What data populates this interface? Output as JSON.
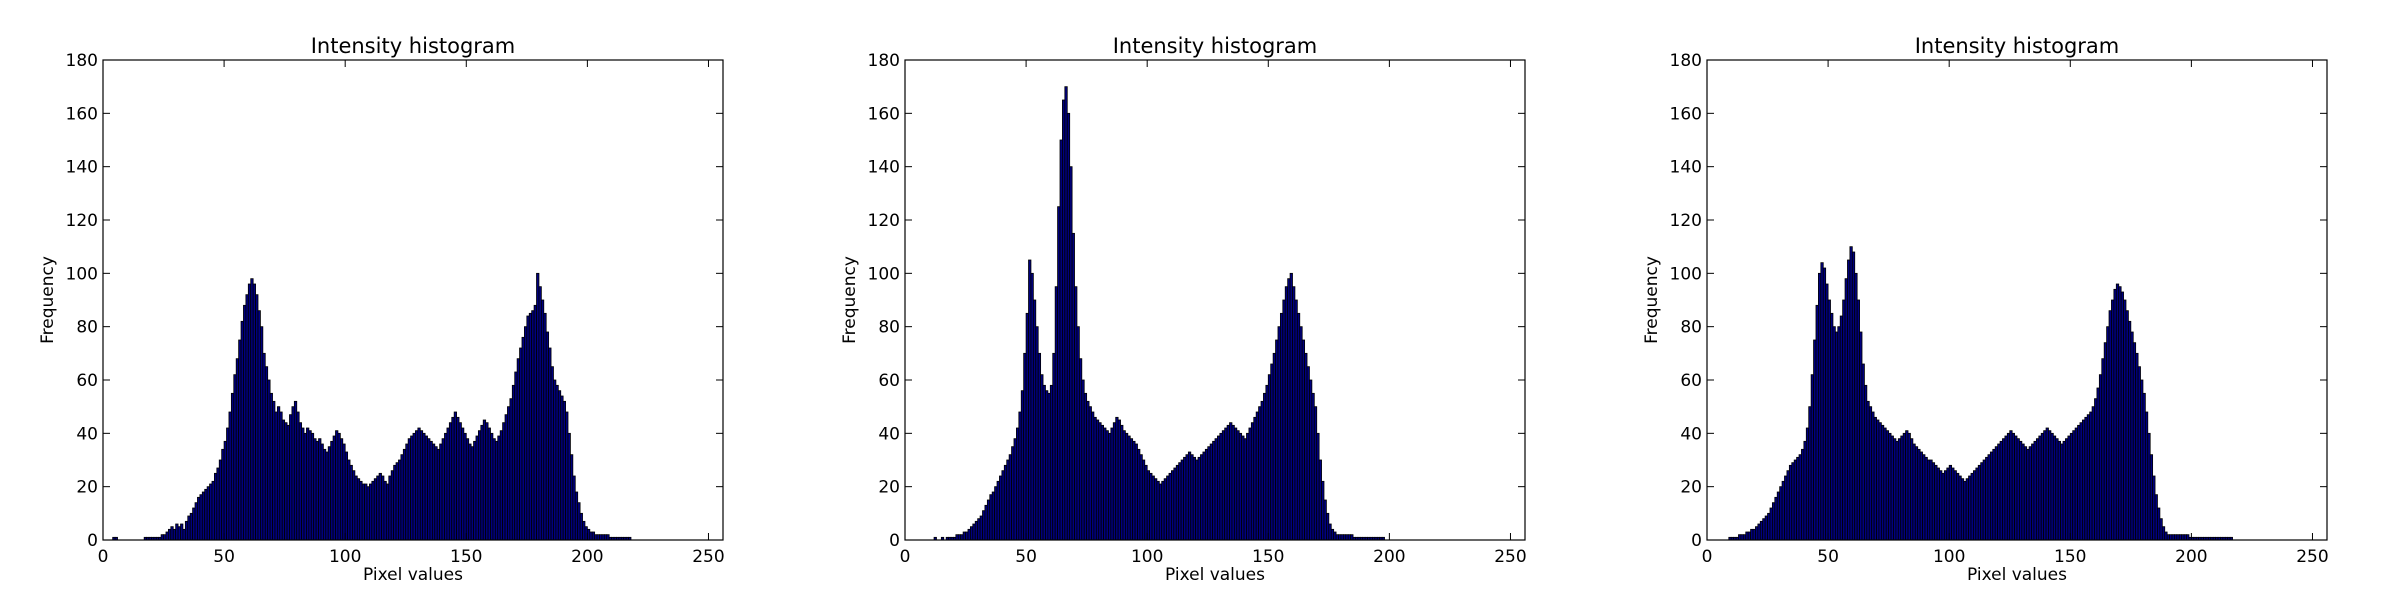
{
  "chart_data": [
    {
      "type": "bar",
      "title": "Intensity histogram",
      "xlabel": "Pixel values",
      "ylabel": "Frequency",
      "xlim": [
        0,
        256
      ],
      "ylim": [
        0,
        180
      ],
      "xticks": [
        "0",
        "50",
        "100",
        "150",
        "200",
        "250"
      ],
      "yticks": [
        "0",
        "20",
        "40",
        "60",
        "80",
        "100",
        "120",
        "140",
        "160",
        "180"
      ],
      "colors": {
        "bar_fill": "#00007f",
        "bar_edge": "#000000"
      },
      "bin_width": 1,
      "x_start": 0,
      "values": [
        0,
        0,
        0,
        0,
        1,
        1,
        0,
        0,
        0,
        0,
        0,
        0,
        0,
        0,
        0,
        0,
        0,
        1,
        1,
        1,
        1,
        1,
        1,
        1,
        2,
        2,
        3,
        4,
        5,
        4,
        6,
        5,
        6,
        4,
        7,
        9,
        10,
        12,
        14,
        16,
        17,
        18,
        19,
        20,
        21,
        22,
        25,
        27,
        30,
        34,
        37,
        42,
        48,
        55,
        62,
        68,
        75,
        82,
        88,
        92,
        96,
        98,
        96,
        92,
        86,
        80,
        70,
        65,
        60,
        55,
        52,
        48,
        50,
        48,
        45,
        44,
        43,
        47,
        50,
        52,
        48,
        44,
        42,
        40,
        42,
        41,
        40,
        38,
        37,
        38,
        36,
        34,
        33,
        35,
        37,
        39,
        41,
        40,
        38,
        36,
        33,
        30,
        28,
        26,
        24,
        23,
        22,
        21,
        21,
        20,
        21,
        22,
        23,
        24,
        25,
        24,
        22,
        21,
        24,
        26,
        28,
        29,
        30,
        32,
        34,
        36,
        38,
        39,
        40,
        41,
        42,
        41,
        40,
        39,
        38,
        37,
        36,
        35,
        34,
        36,
        38,
        40,
        42,
        44,
        46,
        48,
        46,
        44,
        42,
        40,
        38,
        36,
        35,
        37,
        39,
        41,
        43,
        45,
        44,
        42,
        40,
        38,
        37,
        39,
        41,
        44,
        47,
        50,
        53,
        58,
        63,
        68,
        72,
        76,
        80,
        84,
        85,
        86,
        88,
        100,
        95,
        90,
        85,
        78,
        72,
        65,
        60,
        58,
        56,
        54,
        52,
        48,
        40,
        32,
        24,
        18,
        14,
        10,
        7,
        5,
        4,
        3,
        3,
        2,
        2,
        2,
        2,
        2,
        2,
        1,
        1,
        1,
        1,
        1,
        1,
        1,
        1,
        1,
        0,
        0,
        0,
        0,
        0,
        0,
        0,
        0,
        0,
        0,
        0,
        0,
        0,
        0,
        0,
        0,
        0,
        0,
        0,
        0,
        0,
        0,
        0,
        0,
        0,
        0,
        0,
        0,
        0,
        0,
        0,
        0,
        0,
        0,
        0,
        0,
        0,
        0,
        0,
        0,
        0
      ]
    },
    {
      "type": "bar",
      "title": "Intensity histogram",
      "xlabel": "Pixel values",
      "ylabel": "Frequency",
      "xlim": [
        0,
        256
      ],
      "ylim": [
        0,
        180
      ],
      "xticks": [
        "0",
        "50",
        "100",
        "150",
        "200",
        "250"
      ],
      "yticks": [
        "0",
        "20",
        "40",
        "60",
        "80",
        "100",
        "120",
        "140",
        "160",
        "180"
      ],
      "colors": {
        "bar_fill": "#00007f",
        "bar_edge": "#000000"
      },
      "bin_width": 1,
      "x_start": 0,
      "values": [
        0,
        0,
        0,
        0,
        0,
        0,
        0,
        0,
        0,
        0,
        0,
        0,
        1,
        0,
        0,
        1,
        0,
        1,
        1,
        1,
        1,
        2,
        2,
        2,
        3,
        3,
        4,
        5,
        6,
        7,
        8,
        9,
        11,
        13,
        15,
        17,
        18,
        20,
        22,
        24,
        26,
        28,
        30,
        32,
        35,
        38,
        42,
        48,
        56,
        70,
        85,
        105,
        100,
        90,
        80,
        70,
        62,
        58,
        56,
        55,
        58,
        70,
        95,
        125,
        150,
        165,
        170,
        160,
        140,
        115,
        95,
        80,
        68,
        60,
        55,
        52,
        50,
        48,
        46,
        45,
        44,
        43,
        42,
        41,
        40,
        42,
        44,
        46,
        45,
        43,
        41,
        40,
        39,
        38,
        37,
        36,
        34,
        32,
        30,
        28,
        26,
        25,
        24,
        23,
        22,
        21,
        22,
        23,
        24,
        25,
        26,
        27,
        28,
        29,
        30,
        31,
        32,
        33,
        32,
        31,
        30,
        31,
        32,
        33,
        34,
        35,
        36,
        37,
        38,
        39,
        40,
        41,
        42,
        43,
        44,
        43,
        42,
        41,
        40,
        39,
        38,
        40,
        42,
        44,
        46,
        48,
        50,
        52,
        55,
        58,
        62,
        66,
        70,
        75,
        80,
        85,
        90,
        95,
        98,
        100,
        95,
        90,
        85,
        80,
        75,
        70,
        65,
        60,
        55,
        50,
        40,
        30,
        22,
        15,
        10,
        6,
        4,
        3,
        2,
        2,
        2,
        2,
        2,
        2,
        2,
        1,
        1,
        1,
        1,
        1,
        1,
        1,
        1,
        1,
        1,
        1,
        1,
        1,
        0,
        0,
        0,
        0,
        0,
        0,
        0,
        0,
        0,
        0,
        0,
        0,
        0,
        0,
        0,
        0,
        0,
        0,
        0,
        0,
        0,
        0,
        0,
        0,
        0,
        0,
        0,
        0,
        0,
        0,
        0,
        0,
        0,
        0,
        0,
        0,
        0,
        0,
        0,
        0,
        0,
        0,
        0,
        0,
        0,
        0,
        0,
        0,
        0,
        0,
        0,
        0,
        0,
        0
      ]
    },
    {
      "type": "bar",
      "title": "Intensity histogram",
      "xlabel": "Pixel values",
      "ylabel": "Frequency",
      "xlim": [
        0,
        256
      ],
      "ylim": [
        0,
        180
      ],
      "xticks": [
        "0",
        "50",
        "100",
        "150",
        "200",
        "250"
      ],
      "yticks": [
        "0",
        "20",
        "40",
        "60",
        "80",
        "100",
        "120",
        "140",
        "160",
        "180"
      ],
      "colors": {
        "bar_fill": "#00007f",
        "bar_edge": "#000000"
      },
      "bin_width": 1,
      "x_start": 0,
      "values": [
        0,
        0,
        0,
        0,
        0,
        0,
        0,
        0,
        0,
        1,
        1,
        1,
        1,
        2,
        2,
        2,
        3,
        3,
        4,
        4,
        5,
        6,
        7,
        8,
        9,
        10,
        12,
        14,
        16,
        18,
        20,
        22,
        24,
        26,
        28,
        29,
        30,
        31,
        32,
        34,
        37,
        42,
        50,
        62,
        75,
        88,
        100,
        104,
        102,
        96,
        90,
        85,
        80,
        78,
        80,
        84,
        90,
        98,
        105,
        110,
        108,
        100,
        90,
        78,
        66,
        58,
        52,
        50,
        48,
        46,
        45,
        44,
        43,
        42,
        41,
        40,
        39,
        38,
        37,
        38,
        39,
        40,
        41,
        40,
        38,
        36,
        35,
        34,
        33,
        32,
        31,
        30,
        30,
        29,
        28,
        27,
        26,
        25,
        26,
        27,
        28,
        27,
        26,
        25,
        24,
        23,
        22,
        23,
        24,
        25,
        26,
        27,
        28,
        29,
        30,
        31,
        32,
        33,
        34,
        35,
        36,
        37,
        38,
        39,
        40,
        41,
        40,
        39,
        38,
        37,
        36,
        35,
        34,
        35,
        36,
        37,
        38,
        39,
        40,
        41,
        42,
        41,
        40,
        39,
        38,
        37,
        36,
        37,
        38,
        39,
        40,
        41,
        42,
        43,
        44,
        45,
        46,
        47,
        48,
        50,
        53,
        57,
        62,
        68,
        74,
        80,
        86,
        90,
        94,
        96,
        95,
        93,
        90,
        86,
        82,
        78,
        74,
        70,
        65,
        60,
        55,
        48,
        40,
        32,
        24,
        17,
        12,
        8,
        5,
        3,
        2,
        2,
        2,
        2,
        2,
        2,
        2,
        2,
        2,
        1,
        1,
        1,
        1,
        1,
        1,
        1,
        1,
        1,
        1,
        1,
        1,
        1,
        1,
        1,
        1,
        1,
        1,
        0,
        0,
        0,
        0,
        0,
        0,
        0,
        0,
        0,
        0,
        0,
        0,
        0,
        0,
        0,
        0,
        0,
        0,
        0,
        0,
        0,
        0,
        0,
        0,
        0,
        0,
        0,
        0,
        0,
        0,
        0,
        0,
        0,
        0,
        0,
        0,
        0,
        0,
        0,
        0,
        0,
        0,
        0,
        0,
        0,
        0,
        0,
        0,
        0,
        0
      ]
    }
  ]
}
